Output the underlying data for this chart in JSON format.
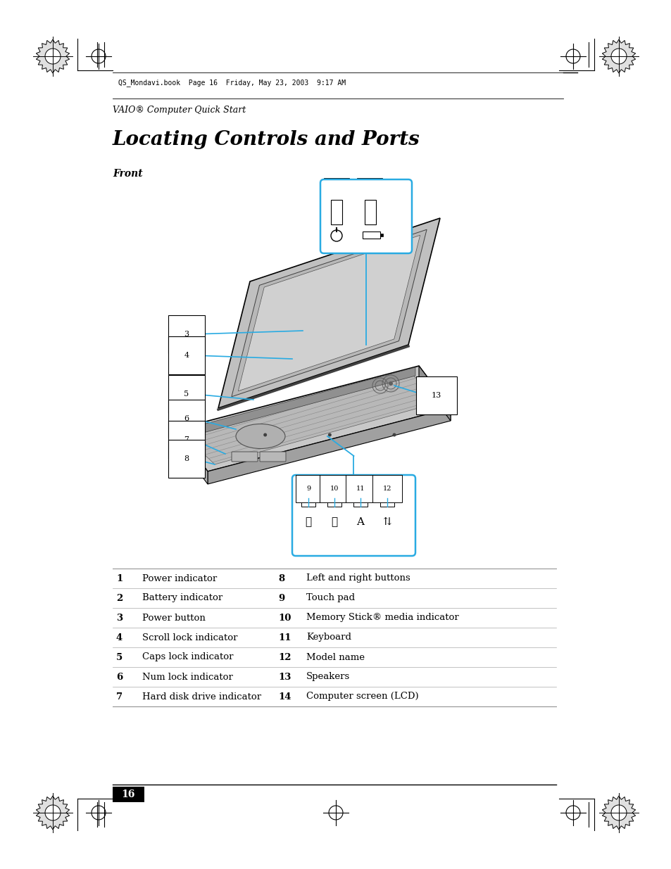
{
  "bg_color": "#ffffff",
  "page_width": 9.54,
  "page_height": 12.35,
  "header_text": "QS_Mondavi.book  Page 16  Friday, May 23, 2003  9:17 AM",
  "subheader_text": "VAIO® Computer Quick Start",
  "title_text": "Locating Controls and Ports",
  "front_label": "Front",
  "table_rows": [
    [
      "1",
      "Power indicator",
      "8",
      "Left and right buttons"
    ],
    [
      "2",
      "Battery indicator",
      "9",
      "Touch pad"
    ],
    [
      "3",
      "Power button",
      "10",
      "Memory Stick® media indicator"
    ],
    [
      "4",
      "Scroll lock indicator",
      "11",
      "Keyboard"
    ],
    [
      "5",
      "Caps lock indicator",
      "12",
      "Model name"
    ],
    [
      "6",
      "Num lock indicator",
      "13",
      "Speakers"
    ],
    [
      "7",
      "Hard disk drive indicator",
      "14",
      "Computer screen (LCD)"
    ]
  ],
  "page_number": "16",
  "accent_color": "#29ABE2",
  "black": "#000000",
  "gray_light": "#c8c8c8",
  "gray_mid": "#a0a0a0",
  "gray_dark": "#606060"
}
